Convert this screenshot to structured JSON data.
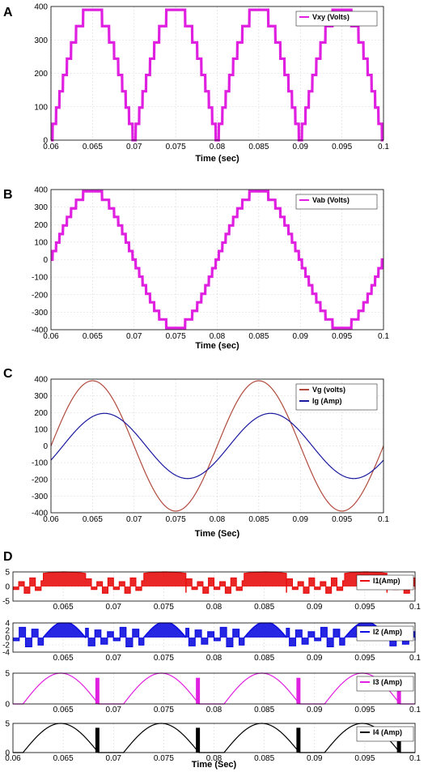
{
  "panels": [
    {
      "label": "A",
      "chart_data": {
        "type": "line",
        "title": "",
        "xlabel": "Time (sec)",
        "ylabel": "",
        "xlim": [
          0.06,
          0.1
        ],
        "ylim": [
          0,
          400
        ],
        "xticks": [
          "0.06",
          "0.065",
          "0.07",
          "0.075",
          "0.08",
          "0.085",
          "0.09",
          "0.095",
          "0.1"
        ],
        "yticks": [
          "0",
          "100",
          "200",
          "300",
          "400"
        ],
        "grid": true,
        "legend_position": "top-right",
        "series": [
          {
            "name": "Vxy (Volts)",
            "color": "#e020e0",
            "waveform": "rectified-staircase",
            "amplitude": 390,
            "frequency_hz": 100,
            "phase": 0,
            "levels": 8
          }
        ]
      }
    },
    {
      "label": "B",
      "chart_data": {
        "type": "line",
        "title": "",
        "xlabel": "Time (sec)",
        "ylabel": "",
        "xlim": [
          0.06,
          0.1
        ],
        "ylim": [
          -400,
          400
        ],
        "xticks": [
          "0.06",
          "0.065",
          "0.07",
          "0.075",
          "0.08",
          "0.085",
          "0.09",
          "0.095",
          "0.1"
        ],
        "yticks": [
          "-400",
          "-300",
          "-200",
          "-100",
          "0",
          "100",
          "200",
          "300",
          "400"
        ],
        "grid": true,
        "legend_position": "top-right",
        "series": [
          {
            "name": "Vab (Volts)",
            "color": "#e020e0",
            "waveform": "staircase-sine",
            "amplitude": 390,
            "frequency_hz": 50,
            "phase": 0,
            "levels": 8
          }
        ]
      }
    },
    {
      "label": "C",
      "chart_data": {
        "type": "line",
        "title": "",
        "xlabel": "Time (Sec)",
        "ylabel": "",
        "xlim": [
          0.06,
          0.1
        ],
        "ylim": [
          -400,
          400
        ],
        "xticks": [
          "0.06",
          "0.065",
          "0.07",
          "0.075",
          "0.08",
          "0.085",
          "0.09",
          "0.095",
          "0.1"
        ],
        "yticks": [
          "-400",
          "-300",
          "-200",
          "-100",
          "0",
          "100",
          "200",
          "300",
          "400"
        ],
        "grid": true,
        "legend_position": "top-right",
        "series": [
          {
            "name": "Vg (volts)",
            "color": "#b04a3c",
            "waveform": "sine",
            "amplitude": 390,
            "frequency_hz": 50,
            "phase": 0
          },
          {
            "name": "Ig (Amp)",
            "color": "#1a1aa0",
            "waveform": "sine",
            "amplitude": 195,
            "frequency_hz": 50,
            "phase": 0.45
          }
        ]
      }
    },
    {
      "label": "D",
      "chart_data": [
        {
          "type": "line",
          "xlim": [
            0.06,
            0.1
          ],
          "ylim": [
            -5,
            5
          ],
          "yticks": [
            "5",
            "0",
            "-5"
          ],
          "xticks": [
            "0.065",
            "0.07",
            "0.075",
            "0.08",
            "0.085",
            "0.09",
            "0.095",
            "0.1"
          ],
          "legend_position": "right",
          "series": [
            {
              "name": "I1(Amp)",
              "color": "#e81010",
              "waveform": "bar-current-1",
              "amplitude": 5,
              "frequency_hz": 50
            }
          ]
        },
        {
          "type": "line",
          "xlim": [
            0.06,
            0.1
          ],
          "ylim": [
            -4,
            4
          ],
          "yticks": [
            "4",
            "2",
            "0",
            "-2",
            "-4"
          ],
          "xticks": [
            "0.065",
            "0.07",
            "0.075",
            "0.08",
            "0.085",
            "0.09",
            "0.095",
            "0.1"
          ],
          "legend_position": "right",
          "series": [
            {
              "name": "I2 (Amp)",
              "color": "#1010e0",
              "waveform": "bar-current-2",
              "amplitude": 4.3,
              "frequency_hz": 50
            }
          ]
        },
        {
          "type": "line",
          "xlim": [
            0.06,
            0.1
          ],
          "ylim": [
            0,
            5
          ],
          "yticks": [
            "5",
            "0"
          ],
          "xticks": [
            "0.065",
            "0.07",
            "0.075",
            "0.08",
            "0.085",
            "0.09",
            "0.095",
            "0.1"
          ],
          "legend_position": "top-right",
          "series": [
            {
              "name": "I3 (Amp)",
              "color": "#e020e0",
              "waveform": "arc-current",
              "amplitude": 5,
              "frequency_hz": 100
            }
          ]
        },
        {
          "type": "line",
          "xlim": [
            0.06,
            0.1
          ],
          "ylim": [
            0,
            5
          ],
          "yticks": [
            "5",
            "0"
          ],
          "xticks": [
            "0.06",
            "0.065",
            "0.07",
            "0.075",
            "0.08",
            "0.085",
            "0.09",
            "0.095",
            "0.1"
          ],
          "xlabel": "Time (Sec)",
          "legend_position": "top-right",
          "series": [
            {
              "name": "I4 (Amp)",
              "color": "#000000",
              "waveform": "arc-current",
              "amplitude": 5,
              "frequency_hz": 100
            }
          ]
        }
      ]
    }
  ]
}
